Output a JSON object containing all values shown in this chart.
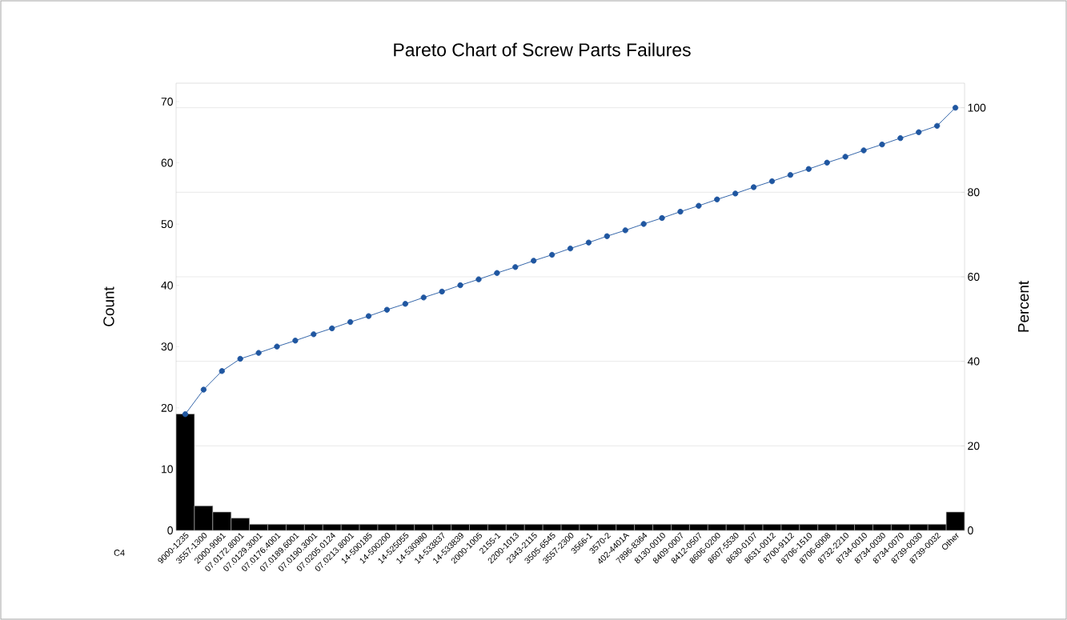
{
  "chart_data": {
    "type": "bar",
    "title": "Pareto Chart of Screw Parts Failures",
    "xlabel": "C4",
    "ylabel": "Count",
    "y2label": "Percent",
    "categories": [
      "9000-1235",
      "3557-1300",
      "2000-9061",
      "07.0172.8001",
      "07.0129.3001",
      "07.0176.4001",
      "07.0189.6001",
      "07.0190.3001",
      "07.0205.0124",
      "07.0213.8001",
      "14-500185",
      "14-500200",
      "14-525055",
      "14-530980",
      "14-533837",
      "14-533839",
      "2000-1005",
      "2155-1",
      "2200-1013",
      "2343-2115",
      "3505-6545",
      "3557-2300",
      "3566-1",
      "3570-2",
      "402-4401A",
      "7896-8364",
      "8130-0010",
      "8409-0007",
      "8412-0507",
      "8606-0200",
      "8607-5530",
      "8630-0107",
      "8631-0012",
      "8700-9112",
      "8706-1510",
      "8706-6008",
      "8732-2210",
      "8734-0010",
      "8734-0030",
      "8734-0070",
      "8739-0030",
      "8739-0032",
      "Other"
    ],
    "series": [
      {
        "color": "#000000",
        "values": [
          19,
          4,
          3,
          2,
          1,
          1,
          1,
          1,
          1,
          1,
          1,
          1,
          1,
          1,
          1,
          1,
          1,
          1,
          1,
          1,
          1,
          1,
          1,
          1,
          1,
          1,
          1,
          1,
          1,
          1,
          1,
          1,
          1,
          1,
          1,
          1,
          1,
          1,
          1,
          1,
          1,
          1,
          3
        ]
      },
      {
        "type": "line",
        "axis": "y2",
        "color": "#1f56a0",
        "values": [
          27.5,
          33.3,
          37.7,
          40.6,
          42.0,
          43.5,
          44.9,
          46.4,
          47.8,
          49.3,
          50.7,
          52.2,
          53.6,
          55.1,
          56.5,
          58.0,
          59.4,
          60.9,
          62.3,
          63.8,
          65.2,
          66.7,
          68.1,
          69.6,
          71.0,
          72.5,
          73.9,
          75.4,
          76.8,
          78.3,
          79.7,
          81.2,
          82.6,
          84.1,
          85.5,
          87.0,
          88.4,
          89.9,
          91.3,
          92.8,
          94.2,
          95.7,
          100
        ]
      }
    ],
    "ylim": [
      0,
      73
    ],
    "yticks": [
      0,
      10,
      20,
      30,
      40,
      50,
      60,
      70
    ],
    "y2lim": [
      0,
      105.8
    ],
    "y2ticks": [
      0,
      20,
      40,
      60,
      80,
      100
    ],
    "grid": "y",
    "marker": "circle",
    "line_style": "solid",
    "legend": false
  }
}
